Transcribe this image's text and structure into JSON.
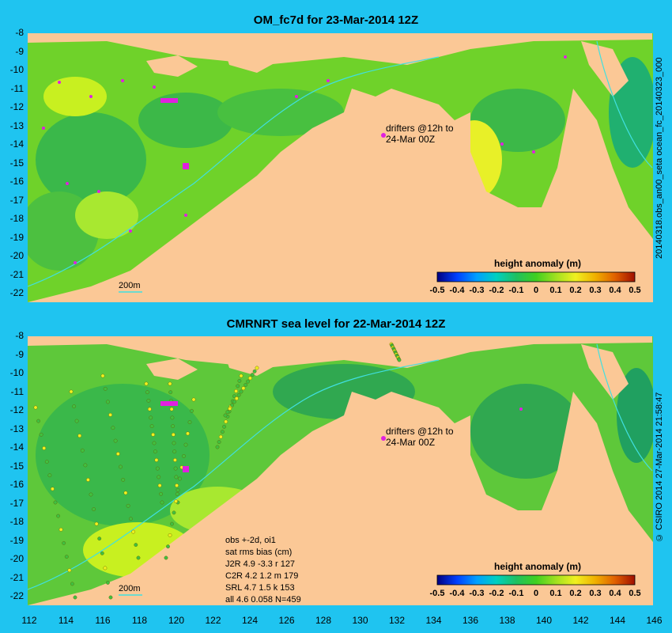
{
  "panels": [
    {
      "title": "OM_fc7d for 23-Mar-2014 12Z",
      "side_label": "20140318.obs_an00_seta   ocean_fc_20140323_000",
      "drifter_note_line1": "drifters @12h to",
      "drifter_note_line2": "24-Mar 00Z",
      "contour_label": "200m",
      "colorbar_title": "height anomaly (m)",
      "colorbar_ticks": [
        "-0.5",
        "-0.4",
        "-0.3",
        "-0.2",
        "-0.1",
        "0",
        "0.1",
        "0.2",
        "0.3",
        "0.4",
        "0.5"
      ]
    },
    {
      "title": "CMRNRT sea level  for 22-Mar-2014 12Z",
      "side_label": "© CSIRO 2014   27-Mar-2014 21:58:47",
      "drifter_note_line1": "drifters @12h to",
      "drifter_note_line2": "24-Mar 00Z",
      "contour_label": "200m",
      "colorbar_title": "height anomaly (m)",
      "colorbar_ticks": [
        "-0.5",
        "-0.4",
        "-0.3",
        "-0.2",
        "-0.1",
        "0",
        "0.1",
        "0.2",
        "0.3",
        "0.4",
        "0.5"
      ],
      "stats": {
        "line1": "obs +-2d, oi1",
        "line2": "sat rms bias (cm)",
        "line3": "J2R   4.9 -3.3 r 127",
        "line4": "C2R   4.2 1.2 m 179",
        "line5": "SRL   4.7 1.5 k 153",
        "line6": "all   4.6 0.058 N=459"
      }
    }
  ],
  "lat_ticks": [
    "-8",
    "-9",
    "-10",
    "-11",
    "-12",
    "-13",
    "-14",
    "-15",
    "-16",
    "-17",
    "-18",
    "-19",
    "-20",
    "-21",
    "-22"
  ],
  "lon_ticks": [
    "112",
    "114",
    "116",
    "118",
    "120",
    "122",
    "124",
    "126",
    "128",
    "130",
    "132",
    "134",
    "136",
    "138",
    "140",
    "142",
    "144",
    "146"
  ],
  "colors": {
    "land": "#fbc896",
    "background": "#1fc4f0",
    "drifter": "#e020e0",
    "isobath": "#40e0e0"
  }
}
